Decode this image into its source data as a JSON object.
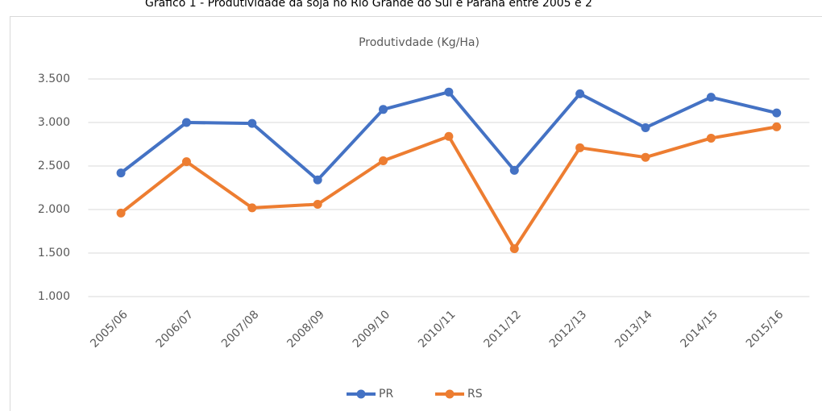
{
  "caption": "Gráfico 1 - Produtividade da soja no Rio Grande do Sul e Paraná entre 2005 e 2",
  "chart_data": {
    "type": "line",
    "title": "Produtivdade (Kg/Ha)",
    "categories": [
      "2005/06",
      "2006/07",
      "2007/08",
      "2008/09",
      "2009/10",
      "2010/11",
      "2011/12",
      "2012/13",
      "2013/14",
      "2014/15",
      "2015/16"
    ],
    "series": [
      {
        "name": "PR",
        "color": "#4472c4",
        "values": [
          2420,
          3000,
          2990,
          2340,
          3150,
          3350,
          2450,
          3330,
          2940,
          3290,
          3110
        ]
      },
      {
        "name": "RS",
        "color": "#ed7d31",
        "values": [
          1960,
          2550,
          2020,
          2060,
          2560,
          2840,
          1550,
          2710,
          2600,
          2820,
          2950
        ]
      }
    ],
    "ylim": [
      1000,
      3500
    ],
    "yticks": [
      {
        "value": 1000,
        "label": "1.000"
      },
      {
        "value": 1500,
        "label": "1.500"
      },
      {
        "value": 2000,
        "label": "2.000"
      },
      {
        "value": 2500,
        "label": "2.500"
      },
      {
        "value": 3000,
        "label": "3.000"
      },
      {
        "value": 3500,
        "label": "3.500"
      }
    ],
    "grid": true,
    "legend": "bottom"
  }
}
